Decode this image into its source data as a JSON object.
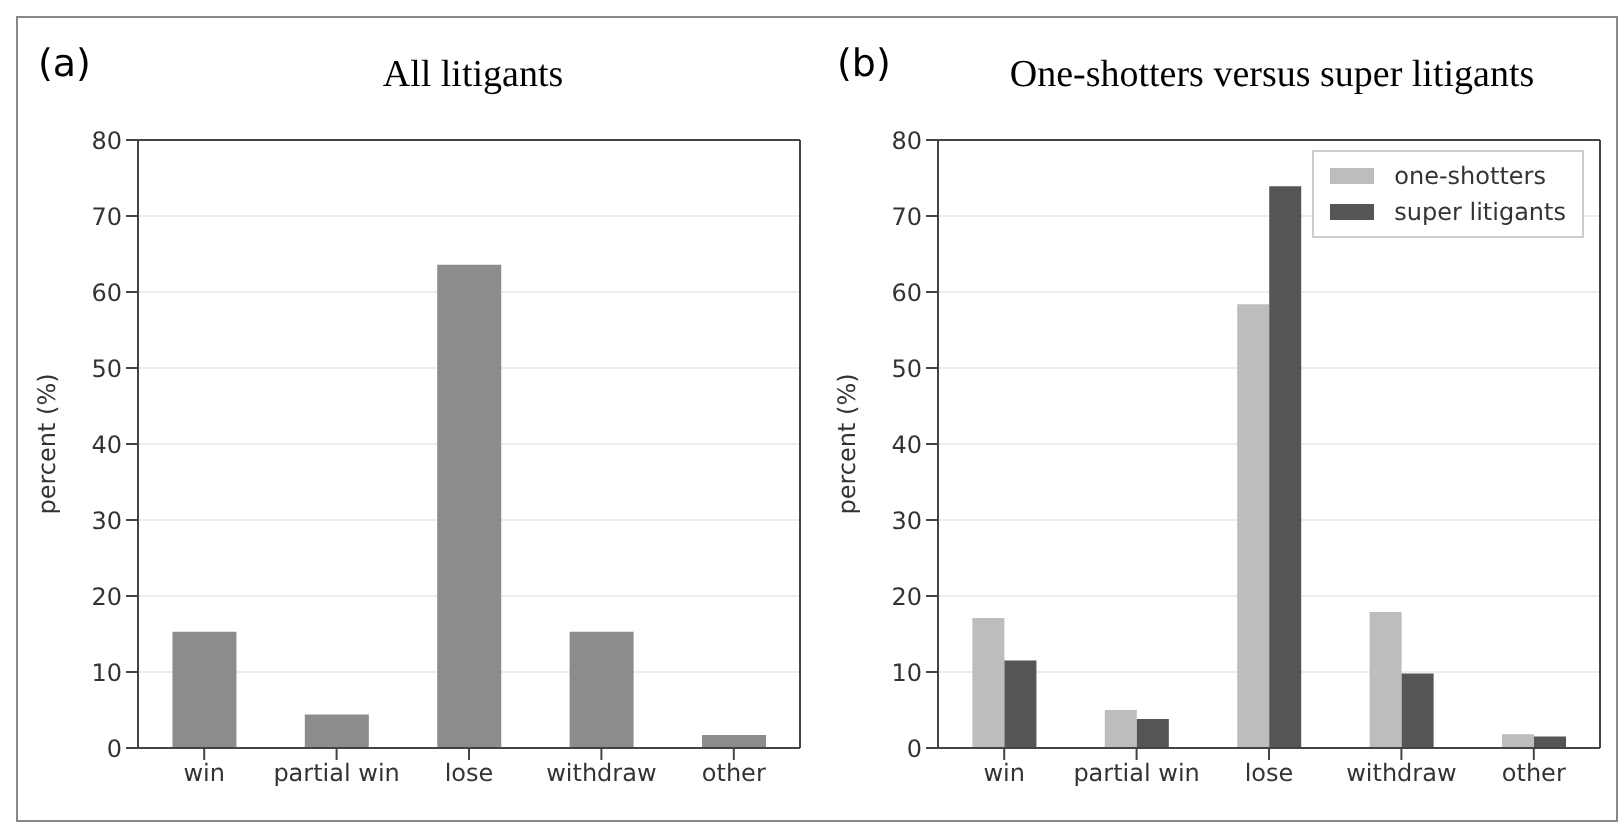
{
  "chart_data": [
    {
      "type": "bar",
      "title": "All litigants",
      "ylabel": "percent (%)",
      "annotations": [
        "(a)"
      ],
      "categories": [
        "win",
        "partial win",
        "lose",
        "withdraw",
        "other"
      ],
      "series": [
        {
          "color": "#8c8c8c",
          "values": [
            15.3,
            4.4,
            63.6,
            15.3,
            1.7
          ]
        }
      ],
      "ylim": [
        0,
        80
      ],
      "yticks": [
        0,
        10,
        20,
        30,
        40,
        50,
        60,
        70,
        80
      ],
      "grid": "y",
      "legend": false
    },
    {
      "type": "bar",
      "title": "One-shotters versus super litigants",
      "ylabel": "percent (%)",
      "annotations": [
        "(b)"
      ],
      "categories": [
        "win",
        "partial win",
        "lose",
        "withdraw",
        "other"
      ],
      "series": [
        {
          "name": "one-shotters",
          "color": "#bdbdbd",
          "values": [
            17.1,
            5.0,
            58.4,
            17.9,
            1.8
          ]
        },
        {
          "name": "super litigants",
          "color": "#555555",
          "values": [
            11.5,
            3.8,
            73.9,
            9.8,
            1.5
          ]
        }
      ],
      "ylim": [
        0,
        80
      ],
      "yticks": [
        0,
        10,
        20,
        30,
        40,
        50,
        60,
        70,
        80
      ],
      "grid": "y",
      "legend": "top right"
    }
  ]
}
